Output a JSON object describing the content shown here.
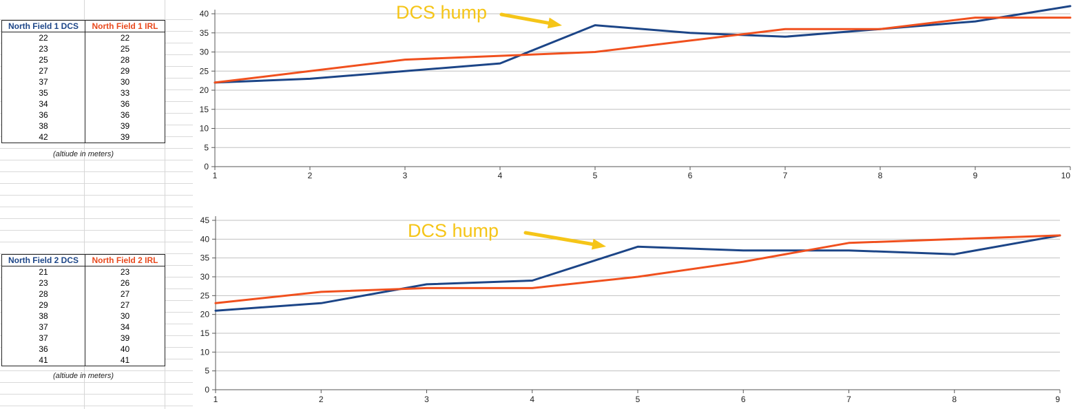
{
  "tables": [
    {
      "headers": [
        "North Field 1 DCS",
        "North Field 1 IRL"
      ],
      "rows": [
        [
          22,
          22
        ],
        [
          23,
          25
        ],
        [
          25,
          28
        ],
        [
          27,
          29
        ],
        [
          37,
          30
        ],
        [
          35,
          33
        ],
        [
          34,
          36
        ],
        [
          36,
          36
        ],
        [
          38,
          39
        ],
        [
          42,
          39
        ]
      ],
      "note": "(altiude in meters)"
    },
    {
      "headers": [
        "North Field 2 DCS",
        "North Field 2 IRL"
      ],
      "rows": [
        [
          21,
          23
        ],
        [
          23,
          26
        ],
        [
          28,
          27
        ],
        [
          29,
          27
        ],
        [
          38,
          30
        ],
        [
          37,
          34
        ],
        [
          37,
          39
        ],
        [
          36,
          40
        ],
        [
          41,
          41
        ]
      ],
      "note": "(altiude in meters)"
    }
  ],
  "colors": {
    "dcs": "#1c4587",
    "irl": "#f0501e",
    "annotation": "#f5c518",
    "grid": "#c0c0c0"
  },
  "chart_data": [
    {
      "type": "line",
      "x": [
        1,
        2,
        3,
        4,
        5,
        6,
        7,
        8,
        9,
        10
      ],
      "series": [
        {
          "values": [
            22,
            23,
            25,
            27,
            37,
            35,
            34,
            36,
            38,
            42
          ]
        },
        {
          "values": [
            22,
            25,
            28,
            29,
            30,
            33,
            36,
            36,
            39,
            39
          ]
        }
      ],
      "ylim": [
        0,
        40
      ],
      "yticks": [
        0,
        5,
        10,
        15,
        20,
        25,
        30,
        35,
        40
      ],
      "grid": true,
      "annotation": {
        "text": "DCS hump",
        "points_to_x": 5
      }
    },
    {
      "type": "line",
      "x": [
        1,
        2,
        3,
        4,
        5,
        6,
        7,
        8,
        9
      ],
      "series": [
        {
          "values": [
            21,
            23,
            28,
            29,
            38,
            37,
            37,
            36,
            41
          ]
        },
        {
          "values": [
            23,
            26,
            27,
            27,
            30,
            34,
            39,
            40,
            41
          ]
        }
      ],
      "ylim": [
        0,
        45
      ],
      "yticks": [
        0,
        5,
        10,
        15,
        20,
        25,
        30,
        35,
        40,
        45
      ],
      "grid": true,
      "annotation": {
        "text": "DCS hump",
        "points_to_x": 5
      }
    }
  ]
}
